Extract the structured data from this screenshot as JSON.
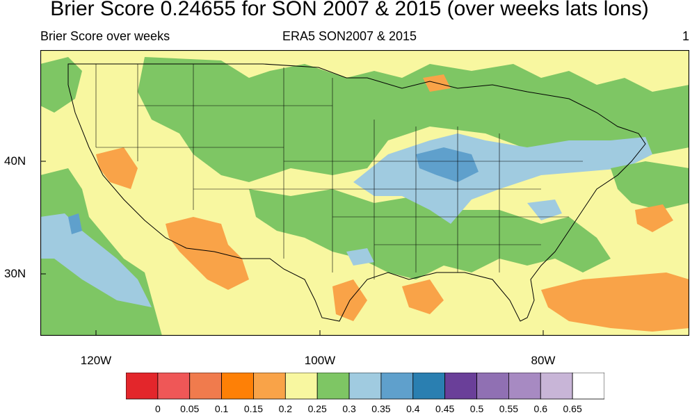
{
  "title": "Brier Score 0.24655 for SON 2007 & 2015 (over weeks lats lons)",
  "subtitle_left": "Brier Score over weeks",
  "subtitle_center": "ERA5 SON2007 & 2015",
  "subtitle_right": "1",
  "lat_labels": [
    "40N",
    "30N"
  ],
  "lon_labels": [
    "120W",
    "100W",
    "80W"
  ],
  "colorbar": {
    "labels": [
      "0",
      "0.05",
      "0.1",
      "0.15",
      "0.2",
      "0.25",
      "0.3",
      "0.35",
      "0.4",
      "0.45",
      "0.5",
      "0.55",
      "0.6",
      "0.65"
    ],
    "colors": [
      "#e3262b",
      "#ef5757",
      "#f07b4d",
      "#fe8006",
      "#f9a348",
      "#f8f7a0",
      "#7ec664",
      "#a0cbe0",
      "#5fa0cc",
      "#2a7fb1",
      "#6a3f99",
      "#9070b3",
      "#a78ac2",
      "#c8b5d7",
      "#ffffff"
    ]
  },
  "map": {
    "region": "Contiguous United States",
    "dominant_colors": {
      "land_base": "#f8f7a0",
      "green": "#7ec664",
      "light_blue": "#a0cbe0",
      "blue": "#5fa0cc",
      "orange": "#f9a348",
      "dark_orange": "#fe8006",
      "ocean_green": "#7ec664"
    }
  }
}
